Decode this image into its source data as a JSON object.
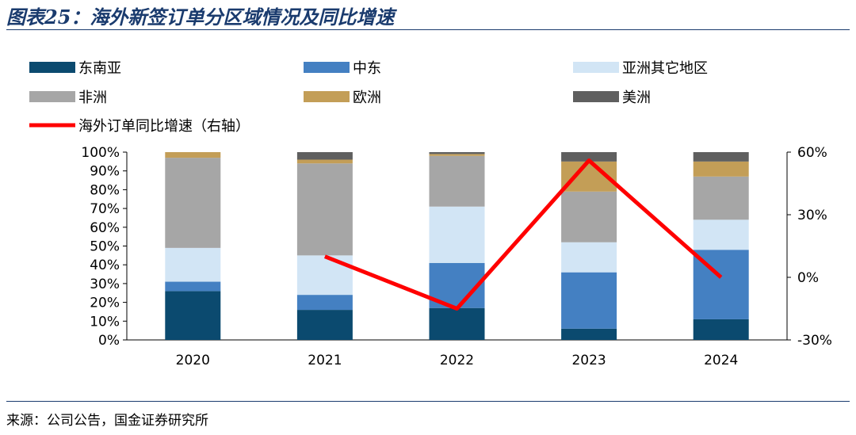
{
  "header": {
    "title": "图表25：海外新签订单分区域情况及同比增速"
  },
  "footer": {
    "source": "来源：公司公告，国金证券研究所"
  },
  "chart_data": {
    "type": "bar",
    "stacked": true,
    "categories": [
      "2020",
      "2021",
      "2022",
      "2023",
      "2024"
    ],
    "y_left": {
      "ticks": [
        "0%",
        "10%",
        "20%",
        "30%",
        "40%",
        "50%",
        "60%",
        "70%",
        "80%",
        "90%",
        "100%"
      ],
      "range": [
        0,
        100
      ]
    },
    "y_right": {
      "ticks": [
        "-30%",
        "0%",
        "30%",
        "60%"
      ],
      "range": [
        -30,
        60
      ]
    },
    "series": [
      {
        "name": "东南亚",
        "color": "#0b4a6f",
        "values": [
          26,
          16,
          17,
          6,
          11
        ]
      },
      {
        "name": "中东",
        "color": "#4480c2",
        "values": [
          5,
          8,
          24,
          30,
          37
        ]
      },
      {
        "name": "亚洲其它地区",
        "color": "#d2e5f5",
        "values": [
          18,
          21,
          30,
          16,
          16
        ]
      },
      {
        "name": "非洲",
        "color": "#a6a6a6",
        "values": [
          48,
          49,
          27,
          27,
          23
        ]
      },
      {
        "name": "欧洲",
        "color": "#c39e57",
        "values": [
          3,
          2,
          1,
          16,
          8
        ]
      },
      {
        "name": "美洲",
        "color": "#5f5f5f",
        "values": [
          0,
          4,
          1,
          5,
          5
        ]
      }
    ],
    "line": {
      "name": "海外订单同比增速（右轴）",
      "color": "#ff0000",
      "axis": "right",
      "points": [
        {
          "category": "2021",
          "value": 10
        },
        {
          "category": "2022",
          "value": -15
        },
        {
          "category": "2023",
          "value": 56
        },
        {
          "category": "2024",
          "value": 0
        }
      ]
    },
    "legend": {
      "position": "top"
    }
  }
}
